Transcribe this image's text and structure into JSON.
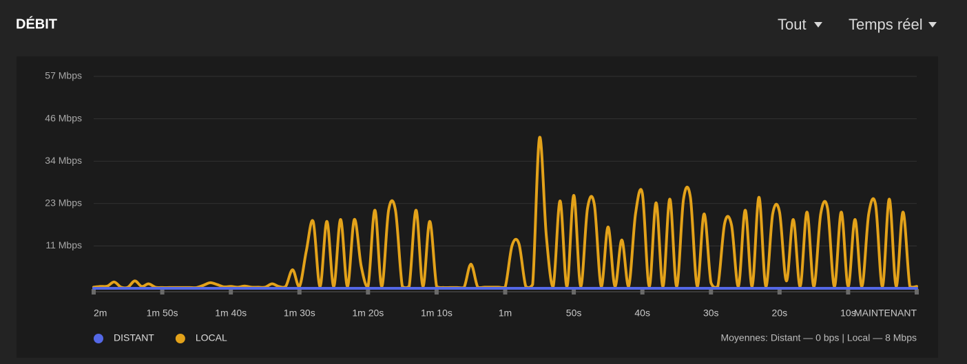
{
  "chart_data": {
    "type": "line",
    "title": "DÉBIT",
    "controls": [
      "Tout",
      "Temps réel"
    ],
    "annotation": "Moyennes: Distant — 0 bps | Local — 8 Mbps",
    "ylim": [
      0,
      57
    ],
    "yticks": [
      {
        "value": 11.4,
        "label": "11 Mbps"
      },
      {
        "value": 22.8,
        "label": "23 Mbps"
      },
      {
        "value": 34.2,
        "label": "34 Mbps"
      },
      {
        "value": 45.6,
        "label": "46 Mbps"
      },
      {
        "value": 57,
        "label": "57 Mbps"
      }
    ],
    "xlim": [
      -120,
      0
    ],
    "xticks": [
      {
        "value": -120,
        "label": "2m"
      },
      {
        "value": -110,
        "label": "1m 50s"
      },
      {
        "value": -100,
        "label": "1m 40s"
      },
      {
        "value": -90,
        "label": "1m 30s"
      },
      {
        "value": -80,
        "label": "1m 20s"
      },
      {
        "value": -70,
        "label": "1m 10s"
      },
      {
        "value": -60,
        "label": "1m"
      },
      {
        "value": -50,
        "label": "50s"
      },
      {
        "value": -40,
        "label": "40s"
      },
      {
        "value": -30,
        "label": "30s"
      },
      {
        "value": -20,
        "label": "20s"
      },
      {
        "value": -10,
        "label": "10s"
      },
      {
        "value": 0,
        "label": "MAINTENANT"
      }
    ],
    "grid": true,
    "x": [
      -120,
      -119,
      -118,
      -117,
      -116,
      -115,
      -114,
      -113,
      -112,
      -111,
      -110,
      -109,
      -108,
      -107,
      -106,
      -105,
      -104,
      -103,
      -102,
      -101,
      -100,
      -99,
      -98,
      -97,
      -96,
      -95,
      -94,
      -93,
      -92,
      -91,
      -90,
      -89,
      -88,
      -87,
      -86,
      -85,
      -84,
      -83,
      -82,
      -81,
      -80,
      -79,
      -78,
      -77,
      -76,
      -75,
      -74,
      -73,
      -72,
      -71,
      -70,
      -69,
      -68,
      -67,
      -66,
      -65,
      -64,
      -63,
      -62,
      -61,
      -60,
      -59,
      -58,
      -57,
      -56,
      -55,
      -54,
      -53,
      -52,
      -51,
      -50,
      -49,
      -48,
      -47,
      -46,
      -45,
      -44,
      -43,
      -42,
      -41,
      -40,
      -39,
      -38,
      -37,
      -36,
      -35,
      -34,
      -33,
      -32,
      -31,
      -30,
      -29,
      -28,
      -27,
      -26,
      -25,
      -24,
      -23,
      -22,
      -21,
      -20,
      -19,
      -18,
      -17,
      -16,
      -15,
      -14,
      -13,
      -12,
      -11,
      -10,
      -9,
      -8,
      -7,
      -6,
      -5,
      -4,
      -3,
      -2,
      -1,
      0
    ],
    "series": [
      {
        "name": "DISTANT",
        "color": "#5468e6",
        "values": [
          0,
          0,
          0,
          0,
          0,
          0,
          0,
          0,
          0,
          0,
          0,
          0,
          0,
          0,
          0,
          0,
          0,
          0,
          0,
          0,
          0,
          0,
          0,
          0,
          0,
          0,
          0,
          0,
          0,
          0,
          0,
          0,
          0,
          0,
          0,
          0,
          0,
          0,
          0,
          0,
          0,
          0,
          0,
          0,
          0,
          0,
          0,
          0,
          0,
          0,
          0,
          0,
          0,
          0,
          0,
          0,
          0,
          0,
          0,
          0,
          0,
          0,
          0,
          0,
          0,
          0,
          0,
          0,
          0,
          0,
          0,
          0,
          0,
          0,
          0,
          0,
          0,
          0,
          0,
          0,
          0,
          0,
          0,
          0,
          0,
          0,
          0,
          0,
          0,
          0,
          0,
          0,
          0,
          0,
          0,
          0,
          0,
          0,
          0,
          0,
          0,
          0,
          0,
          0,
          0,
          0,
          0,
          0,
          0,
          0,
          0,
          0,
          0,
          0,
          0,
          0,
          0,
          0,
          0,
          0,
          0
        ]
      },
      {
        "name": "LOCAL",
        "color": "#e3a21a",
        "values": [
          0.3,
          0.5,
          0.6,
          1.7,
          0.3,
          0.3,
          2,
          0.5,
          1.2,
          0.3,
          0.2,
          0.2,
          0.2,
          0.2,
          0.2,
          0.2,
          0.8,
          1.5,
          1,
          0.4,
          0.5,
          0.3,
          0.6,
          0.3,
          0.3,
          0.3,
          1.2,
          0.5,
          0.5,
          5,
          0.5,
          10,
          18,
          0.5,
          18,
          0.5,
          18.5,
          0.5,
          18.5,
          6,
          0.5,
          21,
          0.5,
          21,
          21,
          0.5,
          0.5,
          21,
          0.5,
          18,
          0.5,
          0.2,
          0.2,
          0.2,
          0.2,
          6.5,
          0.3,
          0.3,
          0.3,
          0.3,
          0.3,
          11.5,
          12,
          0.5,
          1,
          40.5,
          14,
          0.5,
          23.5,
          0.5,
          25,
          0.5,
          21.5,
          22.5,
          0.5,
          16.5,
          0.5,
          13,
          0.5,
          20,
          25.5,
          0.5,
          23,
          0.5,
          24,
          0.5,
          24,
          24.5,
          0.5,
          20,
          1.5,
          0.5,
          17.5,
          17,
          0.5,
          21,
          0.5,
          24.5,
          0.5,
          20,
          20.5,
          2,
          18.5,
          0.5,
          20.5,
          0.5,
          20,
          21.5,
          0.5,
          20.5,
          0.5,
          18.5,
          0.5,
          20,
          22.5,
          0.5,
          24,
          0.5,
          20.5,
          0.5,
          0.5
        ]
      }
    ]
  }
}
